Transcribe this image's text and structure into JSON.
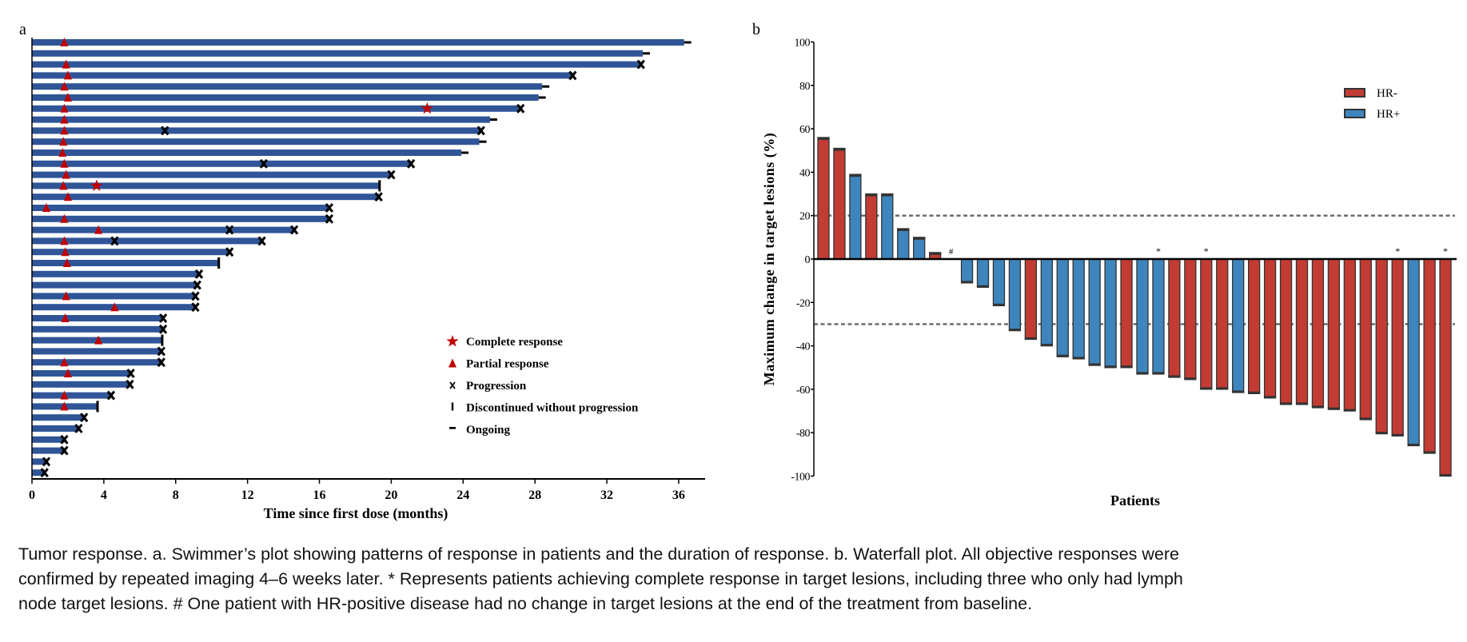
{
  "chart_data": [
    {
      "type": "swimmer",
      "panel_label": "a",
      "xlabel": "Time since first dose (months)",
      "xlim": [
        0,
        37.5
      ],
      "xticks": [
        "0",
        "4",
        "8",
        "12",
        "16",
        "20",
        "24",
        "28",
        "32",
        "36"
      ],
      "bar_color": "#2f5597",
      "legend": {
        "placement": "bottom-right",
        "items": [
          {
            "symbol": "star",
            "label": "Complete response",
            "color": "#c00000"
          },
          {
            "symbol": "triangle",
            "label": "Partial response",
            "color": "#c00000"
          },
          {
            "symbol": "x",
            "label": "Progression",
            "color": "#000000"
          },
          {
            "symbol": "vbar",
            "label": "Discontinued without progression",
            "color": "#000000"
          },
          {
            "symbol": "hbar",
            "label": "Ongoing",
            "color": "#000000"
          }
        ]
      },
      "rows": [
        {
          "duration": 36.3,
          "partial": [
            1.8
          ],
          "complete": [],
          "progression": [],
          "discontinued": false,
          "ongoing": true
        },
        {
          "duration": 34.0,
          "partial": [],
          "complete": [],
          "progression": [],
          "discontinued": false,
          "ongoing": true
        },
        {
          "duration": 33.9,
          "partial": [
            1.9
          ],
          "complete": [],
          "progression": [
            33.9
          ],
          "discontinued": false,
          "ongoing": false
        },
        {
          "duration": 30.1,
          "partial": [
            2.0
          ],
          "complete": [],
          "progression": [
            30.1
          ],
          "discontinued": false,
          "ongoing": false
        },
        {
          "duration": 28.4,
          "partial": [
            1.8
          ],
          "complete": [],
          "progression": [],
          "discontinued": false,
          "ongoing": true
        },
        {
          "duration": 28.2,
          "partial": [
            2.0
          ],
          "complete": [],
          "progression": [],
          "discontinued": false,
          "ongoing": true
        },
        {
          "duration": 27.2,
          "partial": [
            1.8
          ],
          "complete": [
            22.0
          ],
          "progression": [
            27.2
          ],
          "discontinued": false,
          "ongoing": false
        },
        {
          "duration": 25.5,
          "partial": [
            1.8
          ],
          "complete": [],
          "progression": [],
          "discontinued": false,
          "ongoing": true
        },
        {
          "duration": 25.0,
          "partial": [
            1.8
          ],
          "complete": [],
          "progression": [
            7.4,
            25.0
          ],
          "discontinued": false,
          "ongoing": false
        },
        {
          "duration": 24.9,
          "partial": [
            1.75
          ],
          "complete": [],
          "progression": [],
          "discontinued": false,
          "ongoing": true
        },
        {
          "duration": 23.9,
          "partial": [
            1.7
          ],
          "complete": [],
          "progression": [],
          "discontinued": false,
          "ongoing": true
        },
        {
          "duration": 21.1,
          "partial": [
            1.8
          ],
          "complete": [],
          "progression": [
            12.9,
            21.1
          ],
          "discontinued": false,
          "ongoing": false
        },
        {
          "duration": 20.0,
          "partial": [
            1.9
          ],
          "complete": [],
          "progression": [
            20.0
          ],
          "discontinued": false,
          "ongoing": false
        },
        {
          "duration": 19.35,
          "partial": [
            1.75
          ],
          "complete": [
            3.6
          ],
          "progression": [],
          "discontinued": true,
          "ongoing": false
        },
        {
          "duration": 19.3,
          "partial": [
            2.0
          ],
          "complete": [],
          "progression": [
            19.3
          ],
          "discontinued": false,
          "ongoing": false
        },
        {
          "duration": 16.55,
          "partial": [
            0.8
          ],
          "complete": [],
          "progression": [
            16.55
          ],
          "discontinued": false,
          "ongoing": false
        },
        {
          "duration": 16.55,
          "partial": [
            1.8
          ],
          "complete": [],
          "progression": [
            16.55
          ],
          "discontinued": false,
          "ongoing": false
        },
        {
          "duration": 14.6,
          "partial": [
            3.7
          ],
          "complete": [],
          "progression": [
            11.0,
            14.6
          ],
          "discontinued": false,
          "ongoing": false
        },
        {
          "duration": 12.8,
          "partial": [
            1.8
          ],
          "complete": [],
          "progression": [
            4.6,
            12.8
          ],
          "discontinued": false,
          "ongoing": false
        },
        {
          "duration": 11.0,
          "partial": [
            1.85
          ],
          "complete": [],
          "progression": [
            11.0
          ],
          "discontinued": false,
          "ongoing": false
        },
        {
          "duration": 10.4,
          "partial": [
            1.95
          ],
          "complete": [],
          "progression": [],
          "discontinued": true,
          "ongoing": false
        },
        {
          "duration": 9.3,
          "partial": [],
          "complete": [],
          "progression": [
            9.3
          ],
          "discontinued": false,
          "ongoing": false
        },
        {
          "duration": 9.2,
          "partial": [],
          "complete": [],
          "progression": [
            9.2
          ],
          "discontinued": false,
          "ongoing": false
        },
        {
          "duration": 9.1,
          "partial": [
            1.9
          ],
          "complete": [],
          "progression": [
            9.1
          ],
          "discontinued": false,
          "ongoing": false
        },
        {
          "duration": 9.1,
          "partial": [
            4.6
          ],
          "complete": [],
          "progression": [
            9.1
          ],
          "discontinued": false,
          "ongoing": false
        },
        {
          "duration": 7.3,
          "partial": [
            1.85
          ],
          "complete": [],
          "progression": [
            7.3
          ],
          "discontinued": false,
          "ongoing": false
        },
        {
          "duration": 7.3,
          "partial": [],
          "complete": [],
          "progression": [
            7.3
          ],
          "discontinued": false,
          "ongoing": false
        },
        {
          "duration": 7.25,
          "partial": [
            3.7
          ],
          "complete": [],
          "progression": [],
          "discontinued": true,
          "ongoing": false
        },
        {
          "duration": 7.2,
          "partial": [],
          "complete": [],
          "progression": [
            7.2
          ],
          "discontinued": false,
          "ongoing": false
        },
        {
          "duration": 7.2,
          "partial": [
            1.8
          ],
          "complete": [],
          "progression": [
            7.2
          ],
          "discontinued": false,
          "ongoing": false
        },
        {
          "duration": 5.5,
          "partial": [
            2.0
          ],
          "complete": [],
          "progression": [
            5.5
          ],
          "discontinued": false,
          "ongoing": false
        },
        {
          "duration": 5.45,
          "partial": [],
          "complete": [],
          "progression": [
            5.45
          ],
          "discontinued": false,
          "ongoing": false
        },
        {
          "duration": 4.4,
          "partial": [
            1.8
          ],
          "complete": [],
          "progression": [
            4.4
          ],
          "discontinued": false,
          "ongoing": false
        },
        {
          "duration": 3.65,
          "partial": [
            1.8
          ],
          "complete": [],
          "progression": [],
          "discontinued": true,
          "ongoing": false
        },
        {
          "duration": 2.9,
          "partial": [],
          "complete": [],
          "progression": [
            2.9
          ],
          "discontinued": false,
          "ongoing": false
        },
        {
          "duration": 2.6,
          "partial": [],
          "complete": [],
          "progression": [
            2.6
          ],
          "discontinued": false,
          "ongoing": false
        },
        {
          "duration": 1.8,
          "partial": [],
          "complete": [],
          "progression": [
            1.8
          ],
          "discontinued": false,
          "ongoing": false
        },
        {
          "duration": 1.8,
          "partial": [],
          "complete": [],
          "progression": [
            1.8
          ],
          "discontinued": false,
          "ongoing": false
        },
        {
          "duration": 0.8,
          "partial": [],
          "complete": [],
          "progression": [
            0.8
          ],
          "discontinued": false,
          "ongoing": false
        },
        {
          "duration": 0.7,
          "partial": [],
          "complete": [],
          "progression": [
            0.7
          ],
          "discontinued": false,
          "ongoing": false
        }
      ]
    },
    {
      "type": "bar",
      "panel_label": "b",
      "xlabel": "Patients",
      "ylabel": "Maximum change in target lesions (%)",
      "ylim": [
        -100,
        100
      ],
      "yticks": [
        "100",
        "80",
        "60",
        "40",
        "20",
        "0",
        "-20",
        "-40",
        "-60",
        "-80",
        "-100"
      ],
      "reference_lines": [
        20,
        -30
      ],
      "colors": {
        "HR-": "#c23c33",
        "HR+": "#3d85bc",
        "outline": "#333333"
      },
      "legend": {
        "placement": "top-right",
        "items": [
          "HR-",
          "HR+"
        ]
      },
      "bars": [
        {
          "value": 56,
          "group": "HR-",
          "mark": ""
        },
        {
          "value": 51,
          "group": "HR-",
          "mark": ""
        },
        {
          "value": 39,
          "group": "HR+",
          "mark": ""
        },
        {
          "value": 30,
          "group": "HR-",
          "mark": ""
        },
        {
          "value": 30,
          "group": "HR+",
          "mark": ""
        },
        {
          "value": 14,
          "group": "HR+",
          "mark": ""
        },
        {
          "value": 10,
          "group": "HR+",
          "mark": ""
        },
        {
          "value": 3,
          "group": "HR-",
          "mark": ""
        },
        {
          "value": 0,
          "group": "HR+",
          "mark": "#"
        },
        {
          "value": -11,
          "group": "HR+",
          "mark": ""
        },
        {
          "value": -13,
          "group": "HR+",
          "mark": ""
        },
        {
          "value": -21.5,
          "group": "HR+",
          "mark": ""
        },
        {
          "value": -33,
          "group": "HR+",
          "mark": ""
        },
        {
          "value": -37,
          "group": "HR-",
          "mark": ""
        },
        {
          "value": -40,
          "group": "HR+",
          "mark": ""
        },
        {
          "value": -45,
          "group": "HR+",
          "mark": ""
        },
        {
          "value": -46,
          "group": "HR+",
          "mark": ""
        },
        {
          "value": -49,
          "group": "HR+",
          "mark": ""
        },
        {
          "value": -50,
          "group": "HR+",
          "mark": ""
        },
        {
          "value": -50,
          "group": "HR-",
          "mark": ""
        },
        {
          "value": -53,
          "group": "HR+",
          "mark": ""
        },
        {
          "value": -53,
          "group": "HR+",
          "mark": "*"
        },
        {
          "value": -54.5,
          "group": "HR-",
          "mark": ""
        },
        {
          "value": -55.5,
          "group": "HR-",
          "mark": ""
        },
        {
          "value": -60,
          "group": "HR-",
          "mark": "*"
        },
        {
          "value": -60,
          "group": "HR-",
          "mark": ""
        },
        {
          "value": -61.5,
          "group": "HR+",
          "mark": ""
        },
        {
          "value": -62,
          "group": "HR-",
          "mark": ""
        },
        {
          "value": -64,
          "group": "HR-",
          "mark": ""
        },
        {
          "value": -67,
          "group": "HR-",
          "mark": ""
        },
        {
          "value": -67,
          "group": "HR-",
          "mark": ""
        },
        {
          "value": -68.5,
          "group": "HR-",
          "mark": ""
        },
        {
          "value": -69.3,
          "group": "HR-",
          "mark": ""
        },
        {
          "value": -70,
          "group": "HR-",
          "mark": ""
        },
        {
          "value": -74,
          "group": "HR-",
          "mark": ""
        },
        {
          "value": -80.5,
          "group": "HR-",
          "mark": ""
        },
        {
          "value": -81.5,
          "group": "HR-",
          "mark": "*"
        },
        {
          "value": -86,
          "group": "HR+",
          "mark": ""
        },
        {
          "value": -89.5,
          "group": "HR-",
          "mark": ""
        },
        {
          "value": -100,
          "group": "HR-",
          "mark": "*"
        }
      ]
    }
  ],
  "caption": {
    "lines": [
      "Tumor response. a. Swimmer’s plot showing patterns of response in patients and the duration of response. b. Waterfall plot. All objective responses were",
      "confirmed by repeated imaging 4–6 weeks later. * Represents patients achieving complete response in target lesions, including three who only had lymph",
      "node target lesions. # One patient with HR-positive disease had no change in target lesions at the end of the treatment from baseline."
    ]
  }
}
